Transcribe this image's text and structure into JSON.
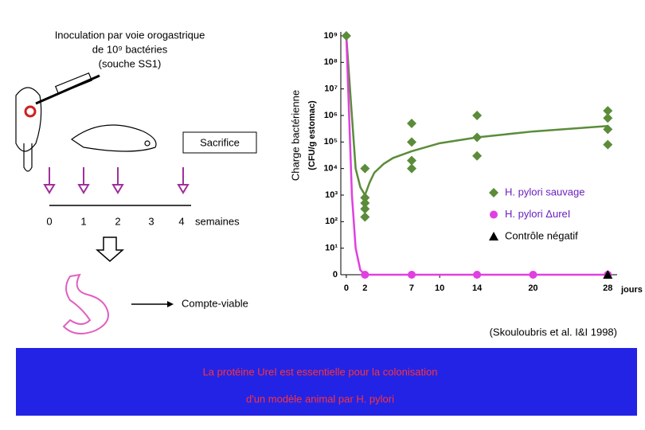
{
  "chart_data": {
    "type": "scatter",
    "y_axis_label": "Charge bactérienne",
    "y_axis_sublabel": "(CFU/g estomac)",
    "x_axis_label": "jours",
    "log_y": true,
    "xlim": [
      -1.1,
      29
    ],
    "ylim": [
      1,
      1000000000
    ],
    "xticks": [
      0,
      2,
      7,
      10,
      14,
      20,
      28
    ],
    "yticks": [
      {
        "value": 1,
        "label": "0"
      },
      {
        "value": 10,
        "label": "10¹"
      },
      {
        "value": 100,
        "label": "10²"
      },
      {
        "value": 1000,
        "label": "10³"
      },
      {
        "value": 10000,
        "label": "10⁴"
      },
      {
        "value": 100000,
        "label": "10⁵"
      },
      {
        "value": 1000000,
        "label": "10⁶"
      },
      {
        "value": 10000000,
        "label": "10⁷"
      },
      {
        "value": 100000000,
        "label": "10⁸"
      },
      {
        "value": 1000000000,
        "label": "10⁹"
      }
    ],
    "series": [
      {
        "name": "H. pylori sauvage",
        "color": "#5b8c3a",
        "marker": "diamond",
        "x": [
          0,
          2,
          2,
          2,
          2,
          2,
          7,
          7,
          7,
          7,
          14,
          14,
          14,
          28,
          28,
          28,
          28
        ],
        "values": [
          1000000000,
          800,
          500,
          300,
          150,
          10000,
          500000,
          100000,
          20000,
          10000,
          1000000,
          150000,
          30000,
          1500000,
          800000,
          300000,
          80000
        ]
      },
      {
        "name": "H. pylori ΔureI",
        "color": "#e040e0",
        "marker": "circle",
        "x": [
          2,
          7,
          14,
          20,
          28
        ],
        "values": [
          1,
          1,
          1,
          1,
          1
        ]
      },
      {
        "name": "Contrôle négatif",
        "color": "#000000",
        "marker": "triangle",
        "x": [
          28
        ],
        "values": [
          1
        ]
      }
    ],
    "curves": [
      {
        "color": "#5b8c3a",
        "x": [
          0,
          0.5,
          1,
          1.5,
          2,
          2.5,
          3,
          4,
          5,
          7,
          10,
          14,
          20,
          28
        ],
        "values": [
          1000000000,
          3000000,
          10000,
          2000,
          1000,
          3000,
          7000,
          15000,
          25000,
          45000,
          90000,
          150000,
          250000,
          400000
        ]
      },
      {
        "color": "#e040e0",
        "x": [
          0,
          0.3,
          0.6,
          1,
          1.5,
          2,
          28
        ],
        "values": [
          1000000000,
          1000000,
          1000,
          10,
          1.5,
          1,
          1
        ]
      }
    ]
  },
  "protocol": {
    "title_lines": [
      "Inoculation par voie orogastrique",
      "de 10⁹ bactéries",
      "(souche SS1)"
    ],
    "sacrifice": "Sacrifice",
    "week_ticks": [
      "0",
      "1",
      "2",
      "3",
      "4"
    ],
    "week_unit": "semaines",
    "count": "Compte-viable"
  },
  "citation": "(Skouloubris et al. I&I 1998)",
  "banner": [
    "La protéine UreI est essentielle pour la colonisation",
    "d'un modèle animal par H. pylori"
  ]
}
